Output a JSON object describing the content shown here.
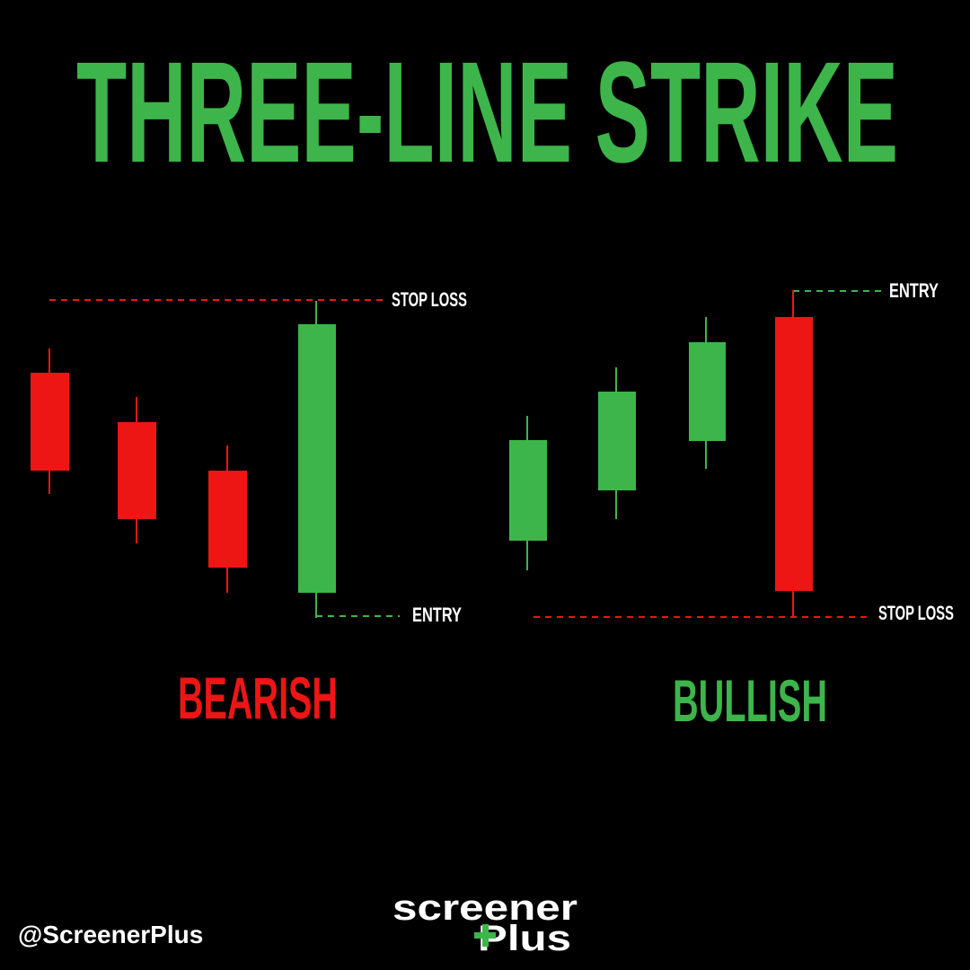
{
  "header": {
    "title": "THREE-LINE STRIKE"
  },
  "bearish": {
    "label": "BEARISH",
    "stop_loss": "STOP LOSS",
    "entry": "ENTRY"
  },
  "bullish": {
    "label": "BULLISH",
    "stop_loss": "STOP LOSS",
    "entry": "ENTRY"
  },
  "footer": {
    "handle": "@ScreenerPlus",
    "logo_top": "screener",
    "logo_bottom": "Plus"
  }
}
